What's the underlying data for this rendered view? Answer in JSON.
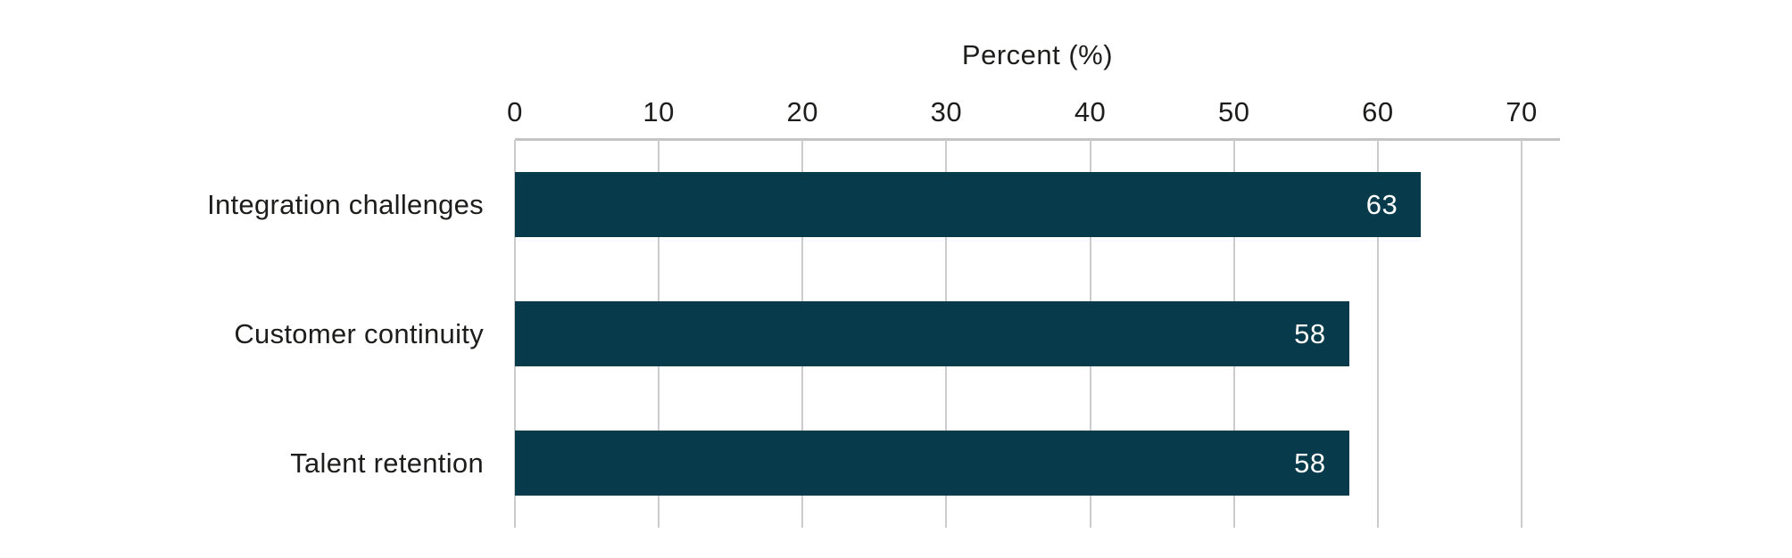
{
  "chart_data": {
    "type": "bar",
    "orientation": "horizontal",
    "title": "Percent (%)",
    "categories": [
      "Integration challenges",
      "Customer continuity",
      "Talent retention"
    ],
    "values": [
      63,
      58,
      58
    ],
    "value_labels": [
      "63",
      "58",
      "58"
    ],
    "xlabel": "Percent (%)",
    "ylabel": "",
    "xlim": [
      0,
      70
    ],
    "xticks": [
      0,
      10,
      20,
      30,
      40,
      50,
      60,
      70
    ],
    "grid": true,
    "legend": "none",
    "colors": {
      "bar": "#073b4c",
      "value_label": "#ffffff",
      "gridline": "#cccccc",
      "axis_line": "#c4c4c4",
      "text": "#1d1d1b",
      "background": "#ffffff"
    }
  }
}
